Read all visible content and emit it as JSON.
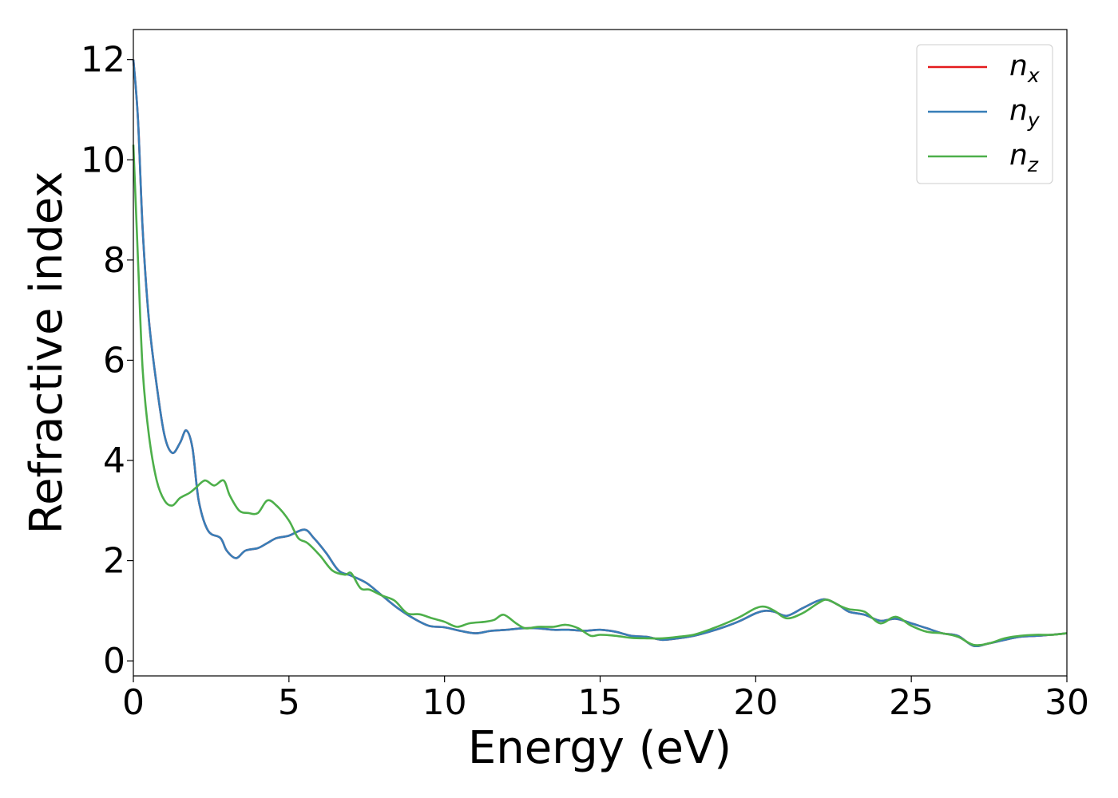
{
  "chart_data": {
    "type": "line",
    "xlabel": "Energy (eV)",
    "ylabel": "Refractive index",
    "xlim": [
      0,
      30
    ],
    "ylim": [
      -0.3,
      12.6
    ],
    "xticks": [
      "0",
      "5",
      "10",
      "15",
      "20",
      "25",
      "30"
    ],
    "yticks": [
      "0",
      "2",
      "4",
      "6",
      "8",
      "10",
      "12"
    ],
    "grid": false,
    "legend_position": "top-right",
    "series": [
      {
        "name": "n",
        "subscript": "x",
        "color": "#e41a1c",
        "x": [
          0,
          0.15,
          0.3,
          0.5,
          0.75,
          1.0,
          1.25,
          1.5,
          1.7,
          1.9,
          2.1,
          2.4,
          2.8,
          3.0,
          3.3,
          3.6,
          4.0,
          4.3,
          4.6,
          5.0,
          5.5,
          5.8,
          6.2,
          6.6,
          7.0,
          7.5,
          8.0,
          8.5,
          9.0,
          9.5,
          10.0,
          10.5,
          11.0,
          11.5,
          12.0,
          12.5,
          13.0,
          13.5,
          14.0,
          14.5,
          15.0,
          15.5,
          16.0,
          16.5,
          17.0,
          17.5,
          18.0,
          18.5,
          19.0,
          19.5,
          20.0,
          20.3,
          20.6,
          21.0,
          21.5,
          22.0,
          22.3,
          22.7,
          23.0,
          23.5,
          24.0,
          24.5,
          25.0,
          25.5,
          26.0,
          26.5,
          27.0,
          27.5,
          28.0,
          28.5,
          29.0,
          29.5,
          30.0
        ],
        "y": [
          12.0,
          10.8,
          8.6,
          6.8,
          5.5,
          4.5,
          4.15,
          4.35,
          4.6,
          4.25,
          3.2,
          2.6,
          2.45,
          2.2,
          2.05,
          2.2,
          2.25,
          2.35,
          2.45,
          2.5,
          2.62,
          2.45,
          2.15,
          1.8,
          1.7,
          1.55,
          1.3,
          1.05,
          0.85,
          0.7,
          0.67,
          0.6,
          0.55,
          0.6,
          0.62,
          0.65,
          0.65,
          0.62,
          0.62,
          0.6,
          0.62,
          0.58,
          0.5,
          0.48,
          0.42,
          0.45,
          0.5,
          0.58,
          0.68,
          0.8,
          0.95,
          1.0,
          0.98,
          0.9,
          1.05,
          1.2,
          1.22,
          1.1,
          0.98,
          0.92,
          0.8,
          0.84,
          0.75,
          0.65,
          0.55,
          0.5,
          0.3,
          0.35,
          0.42,
          0.48,
          0.5,
          0.52,
          0.55
        ]
      },
      {
        "name": "n",
        "subscript": "y",
        "color": "#377eb8",
        "x": [
          0,
          0.15,
          0.3,
          0.5,
          0.75,
          1.0,
          1.25,
          1.5,
          1.7,
          1.9,
          2.1,
          2.4,
          2.8,
          3.0,
          3.3,
          3.6,
          4.0,
          4.3,
          4.6,
          5.0,
          5.5,
          5.8,
          6.2,
          6.6,
          7.0,
          7.5,
          8.0,
          8.5,
          9.0,
          9.5,
          10.0,
          10.5,
          11.0,
          11.5,
          12.0,
          12.5,
          13.0,
          13.5,
          14.0,
          14.5,
          15.0,
          15.5,
          16.0,
          16.5,
          17.0,
          17.5,
          18.0,
          18.5,
          19.0,
          19.5,
          20.0,
          20.3,
          20.6,
          21.0,
          21.5,
          22.0,
          22.3,
          22.7,
          23.0,
          23.5,
          24.0,
          24.5,
          25.0,
          25.5,
          26.0,
          26.5,
          27.0,
          27.5,
          28.0,
          28.5,
          29.0,
          29.5,
          30.0
        ],
        "y": [
          12.0,
          10.8,
          8.6,
          6.8,
          5.5,
          4.5,
          4.15,
          4.35,
          4.6,
          4.25,
          3.2,
          2.6,
          2.45,
          2.2,
          2.05,
          2.2,
          2.25,
          2.35,
          2.45,
          2.5,
          2.62,
          2.45,
          2.15,
          1.8,
          1.7,
          1.55,
          1.3,
          1.05,
          0.85,
          0.7,
          0.67,
          0.6,
          0.55,
          0.6,
          0.62,
          0.65,
          0.65,
          0.62,
          0.62,
          0.6,
          0.62,
          0.58,
          0.5,
          0.48,
          0.42,
          0.45,
          0.5,
          0.58,
          0.68,
          0.8,
          0.95,
          1.0,
          0.98,
          0.9,
          1.05,
          1.2,
          1.22,
          1.1,
          0.98,
          0.92,
          0.8,
          0.84,
          0.75,
          0.65,
          0.55,
          0.5,
          0.3,
          0.35,
          0.42,
          0.48,
          0.5,
          0.52,
          0.55
        ]
      },
      {
        "name": "n",
        "subscript": "z",
        "color": "#4daf4a",
        "x": [
          0,
          0.15,
          0.3,
          0.5,
          0.75,
          1.0,
          1.25,
          1.5,
          1.8,
          2.0,
          2.3,
          2.6,
          2.9,
          3.1,
          3.4,
          3.7,
          4.0,
          4.3,
          4.6,
          5.0,
          5.3,
          5.6,
          6.0,
          6.4,
          6.8,
          7.0,
          7.3,
          7.6,
          8.0,
          8.4,
          8.8,
          9.2,
          9.6,
          10.0,
          10.4,
          10.8,
          11.3,
          11.6,
          11.9,
          12.3,
          12.6,
          13.0,
          13.5,
          13.9,
          14.3,
          14.7,
          15.0,
          15.5,
          16.0,
          16.5,
          17.0,
          17.5,
          18.0,
          18.5,
          19.0,
          19.5,
          20.0,
          20.3,
          20.6,
          21.0,
          21.5,
          22.0,
          22.3,
          22.7,
          23.0,
          23.5,
          24.0,
          24.5,
          25.0,
          25.5,
          26.0,
          26.5,
          27.0,
          27.5,
          28.0,
          28.5,
          29.0,
          29.5,
          30.0
        ],
        "y": [
          10.3,
          8.0,
          5.8,
          4.5,
          3.6,
          3.2,
          3.1,
          3.25,
          3.35,
          3.45,
          3.6,
          3.5,
          3.6,
          3.3,
          3.0,
          2.95,
          2.95,
          3.2,
          3.1,
          2.8,
          2.45,
          2.35,
          2.1,
          1.8,
          1.72,
          1.75,
          1.45,
          1.42,
          1.3,
          1.2,
          0.95,
          0.93,
          0.85,
          0.78,
          0.68,
          0.75,
          0.78,
          0.82,
          0.92,
          0.75,
          0.65,
          0.68,
          0.68,
          0.72,
          0.65,
          0.5,
          0.52,
          0.5,
          0.46,
          0.45,
          0.45,
          0.48,
          0.52,
          0.62,
          0.74,
          0.88,
          1.05,
          1.08,
          1.0,
          0.85,
          0.95,
          1.15,
          1.22,
          1.1,
          1.03,
          0.98,
          0.75,
          0.88,
          0.7,
          0.58,
          0.55,
          0.48,
          0.32,
          0.35,
          0.45,
          0.5,
          0.52,
          0.52,
          0.55
        ]
      }
    ]
  }
}
